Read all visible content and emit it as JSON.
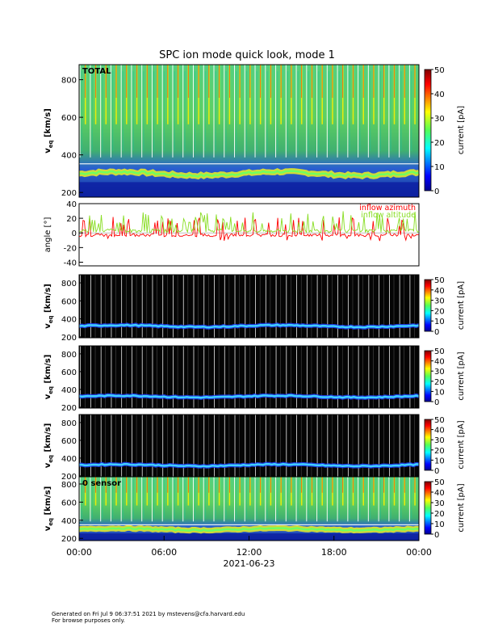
{
  "title": "SPC ion mode quick look, mode 1",
  "footer": {
    "line1": "Generated on Fri Jul  9 06:37:51 2021 by mstevens@cfa.harvard.edu",
    "line2": "For browse purposes only."
  },
  "chart_data": [
    {
      "type": "heatmap",
      "panel_label": "TOTAL",
      "ylabel": "v_eq [km/s]",
      "ylabel_main": "v",
      "ylabel_sub": "eq",
      "ylabel_unit": "[km/s]",
      "ylim": [
        175,
        880
      ],
      "yticks": [
        "200",
        "400",
        "600",
        "800"
      ],
      "ytick_values": [
        200,
        400,
        600,
        800
      ],
      "background": "full",
      "beam_speed_kms": 300,
      "colorbar": {
        "label": "current [pA]",
        "range": [
          0,
          50
        ],
        "ticks": [
          "0",
          "10",
          "20",
          "30",
          "40",
          "50"
        ],
        "tick_values": [
          0,
          10,
          20,
          30,
          40,
          50
        ]
      }
    },
    {
      "type": "line",
      "ylabel": "angle [°]",
      "ylim": [
        -45,
        40
      ],
      "yticks": [
        "-40",
        "-20",
        "0",
        "20",
        "40"
      ],
      "ytick_values": [
        -40,
        -20,
        0,
        20,
        40
      ],
      "series": [
        {
          "name": "inflow azimuth",
          "color": "#ff0000"
        },
        {
          "name": "inflow altitude",
          "color": "#88dd22"
        }
      ]
    },
    {
      "type": "heatmap",
      "panel_label": "",
      "ylabel_main": "v",
      "ylabel_sub": "eq",
      "ylabel_unit": "[km/s]",
      "ylim": [
        190,
        890
      ],
      "yticks": [
        "200",
        "400",
        "600",
        "800"
      ],
      "ytick_values": [
        200,
        400,
        600,
        800
      ],
      "background": "dark",
      "beam_speed_kms": 320,
      "colorbar": {
        "label": "current [pA]",
        "range": [
          0,
          50
        ],
        "ticks": [
          "0",
          "10",
          "20",
          "30",
          "40",
          "50"
        ],
        "tick_values": [
          0,
          10,
          20,
          30,
          40,
          50
        ]
      }
    },
    {
      "type": "heatmap",
      "panel_label": "",
      "ylabel_main": "v",
      "ylabel_sub": "eq",
      "ylabel_unit": "[km/s]",
      "ylim": [
        190,
        890
      ],
      "yticks": [
        "200",
        "400",
        "600",
        "800"
      ],
      "ytick_values": [
        200,
        400,
        600,
        800
      ],
      "background": "dark",
      "beam_speed_kms": 320,
      "colorbar": {
        "label": "current [pA]",
        "range": [
          0,
          50
        ],
        "ticks": [
          "0",
          "10",
          "20",
          "30",
          "40",
          "50"
        ],
        "tick_values": [
          0,
          10,
          20,
          30,
          40,
          50
        ]
      }
    },
    {
      "type": "heatmap",
      "panel_label": "",
      "ylabel_main": "v",
      "ylabel_sub": "eq",
      "ylabel_unit": "[km/s]",
      "ylim": [
        190,
        890
      ],
      "yticks": [
        "200",
        "400",
        "600",
        "800"
      ],
      "ytick_values": [
        200,
        400,
        600,
        800
      ],
      "background": "dark",
      "beam_speed_kms": 320,
      "colorbar": {
        "label": "current [pA]",
        "range": [
          0,
          50
        ],
        "ticks": [
          "0",
          "10",
          "20",
          "30",
          "40",
          "50"
        ],
        "tick_values": [
          0,
          10,
          20,
          30,
          40,
          50
        ]
      }
    },
    {
      "type": "heatmap",
      "panel_label": "0 sensor",
      "ylabel_main": "v",
      "ylabel_sub": "eq",
      "ylabel_unit": "[km/s]",
      "ylim": [
        175,
        880
      ],
      "yticks": [
        "200",
        "400",
        "600",
        "800"
      ],
      "ytick_values": [
        200,
        400,
        600,
        800
      ],
      "background": "full",
      "beam_speed_kms": 300,
      "colorbar": {
        "label": "current [pA]",
        "range": [
          0,
          50
        ],
        "ticks": [
          "0",
          "10",
          "20",
          "30",
          "40",
          "50"
        ],
        "tick_values": [
          0,
          10,
          20,
          30,
          40,
          50
        ]
      }
    }
  ],
  "xaxis": {
    "xlim_hours": [
      0,
      24
    ],
    "ticks": [
      "00:00",
      "06:00",
      "12:00",
      "18:00",
      "00:00"
    ],
    "tick_hours": [
      0,
      6,
      12,
      18,
      24
    ],
    "date_label": "2021-06-23"
  }
}
